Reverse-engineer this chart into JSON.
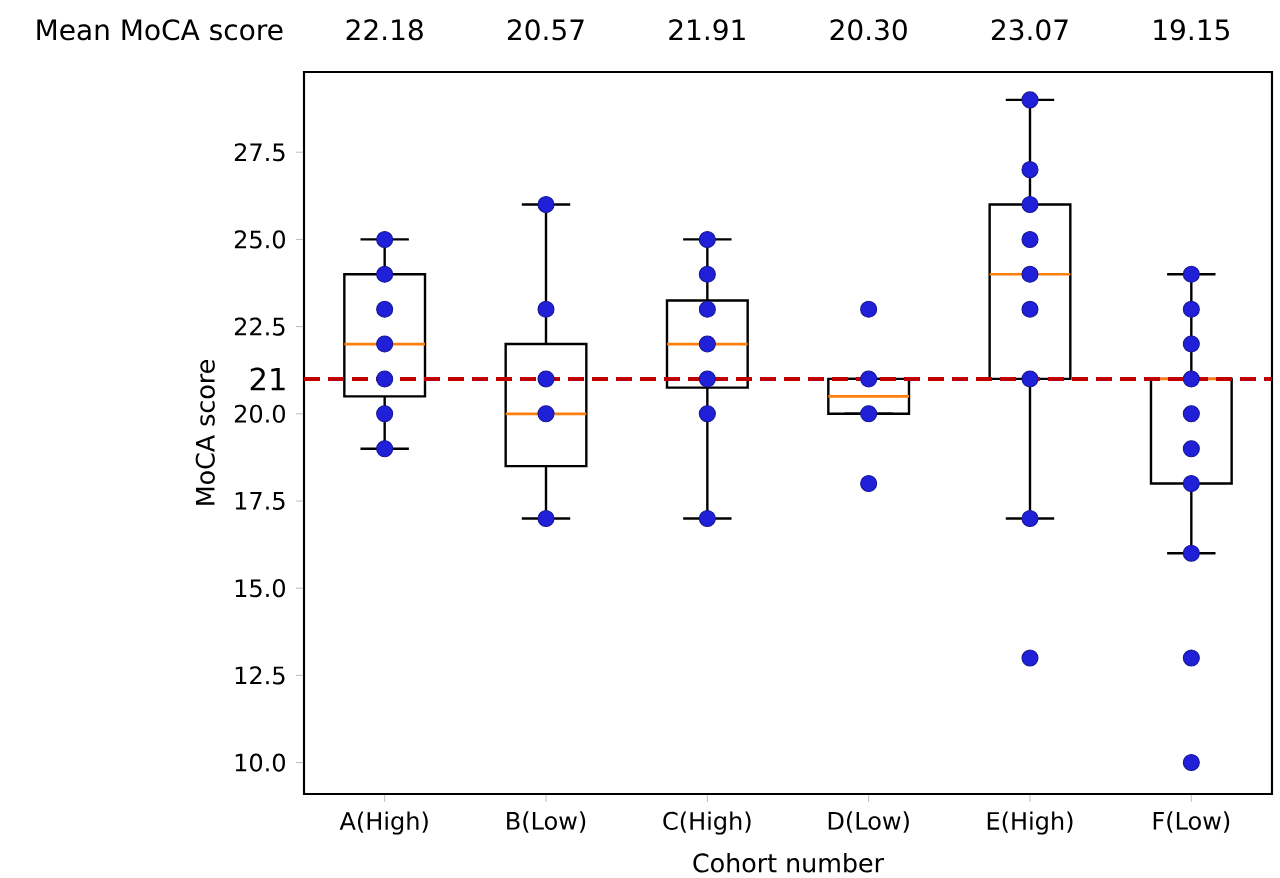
{
  "chart_data": {
    "type": "box",
    "xlabel": "Cohort number",
    "ylabel": "MoCA score",
    "categories": [
      "A(High)",
      "B(Low)",
      "C(High)",
      "D(Low)",
      "E(High)",
      "F(Low)"
    ],
    "ylim": [
      9.1,
      29.8
    ],
    "yticks": [
      {
        "value": 10,
        "label": "10.0"
      },
      {
        "value": 12.5,
        "label": "12.5"
      },
      {
        "value": 15,
        "label": "15.0"
      },
      {
        "value": 17.5,
        "label": "17.5"
      },
      {
        "value": 20,
        "label": "20.0"
      },
      {
        "value": 22.5,
        "label": "22.5"
      },
      {
        "value": 25,
        "label": "25.0"
      },
      {
        "value": 27.5,
        "label": "27.5"
      }
    ],
    "series": [
      {
        "color": "#000000",
        "boxes": [
          {
            "low": 19,
            "q1": 20.5,
            "median": 22,
            "q3": 24,
            "high": 25
          },
          {
            "low": 17,
            "q1": 18.5,
            "median": 20,
            "q3": 22,
            "high": 26
          },
          {
            "low": 17,
            "q1": 20.75,
            "median": 22,
            "q3": 23.25,
            "high": 25
          },
          {
            "low": 20,
            "q1": 20,
            "median": 20.5,
            "q3": 21,
            "high": 21
          },
          {
            "low": 17,
            "q1": 21,
            "median": 24,
            "q3": 26,
            "high": 29
          },
          {
            "low": 16,
            "q1": 18,
            "median": 21,
            "q3": 21,
            "high": 24
          }
        ]
      },
      {
        "type": "scatter",
        "color": "#2020d8",
        "marker": "circle",
        "x": [
          "A(High)",
          "A(High)",
          "A(High)",
          "A(High)",
          "A(High)",
          "A(High)",
          "A(High)",
          "B(Low)",
          "B(Low)",
          "B(Low)",
          "B(Low)",
          "B(Low)",
          "C(High)",
          "C(High)",
          "C(High)",
          "C(High)",
          "C(High)",
          "C(High)",
          "C(High)",
          "D(Low)",
          "D(Low)",
          "D(Low)",
          "D(Low)",
          "E(High)",
          "E(High)",
          "E(High)",
          "E(High)",
          "E(High)",
          "E(High)",
          "E(High)",
          "E(High)",
          "E(High)",
          "F(Low)",
          "F(Low)",
          "F(Low)",
          "F(Low)",
          "F(Low)",
          "F(Low)",
          "F(Low)",
          "F(Low)",
          "F(Low)",
          "F(Low)"
        ],
        "values": [
          25,
          24,
          23,
          22,
          21,
          20,
          19,
          26,
          23,
          21,
          20,
          17,
          25,
          24,
          23,
          22,
          21,
          20,
          17,
          23,
          21,
          20,
          18,
          29,
          27,
          26,
          25,
          24,
          23,
          21,
          17,
          13,
          24,
          23,
          22,
          21,
          20,
          19,
          18,
          16,
          13,
          10
        ]
      }
    ],
    "ref_lines": [
      {
        "axis": "y",
        "value": 21,
        "label": "21",
        "color": "#c00000",
        "line_style": "dashed"
      }
    ],
    "annotations": [
      "Mean MoCA score",
      "22.18",
      "20.57",
      "21.91",
      "20.30",
      "23.07",
      "19.15"
    ]
  }
}
